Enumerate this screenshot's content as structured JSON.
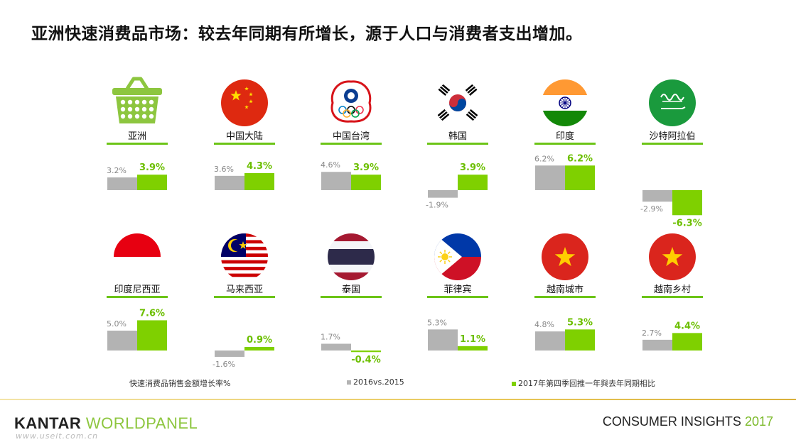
{
  "title": "亚洲快速消费品市场：较去年同期有所增长，源于人口与消费者支出增加。",
  "colors": {
    "gray": "#b3b3b3",
    "green": "#7fd000",
    "underline": "#6cc417"
  },
  "legend": {
    "title": "快速消费品销售金额增长率%",
    "series_2016": "2016vs.2015",
    "series_2017": "2017年第四季回推一年與去年同期相比"
  },
  "footer": {
    "brand_kantar": "KANTAR",
    "brand_worldpanel": "WORLDPANEL",
    "watermark": "www.useit.com.cn",
    "insights": "CONSUMER INSIGHTS",
    "year": "2017"
  },
  "chart_data": {
    "type": "bar",
    "categories": [
      "亚洲",
      "中国大陆",
      "中国台湾",
      "韩国",
      "印度",
      "沙特阿拉伯",
      "印度尼西亚",
      "马来西亚",
      "泰国",
      "菲律宾",
      "越南城市",
      "越南乡村"
    ],
    "icons": [
      "basket-icon",
      "china-flag-icon",
      "taiwan-olympic-flag-icon",
      "korea-flag-icon",
      "india-flag-icon",
      "saudi-flag-icon",
      "indonesia-flag-icon",
      "malaysia-flag-icon",
      "thailand-flag-icon",
      "philippines-flag-icon",
      "vietnam-flag-icon",
      "vietnam-flag-icon"
    ],
    "series": [
      {
        "name": "2016vs.2015",
        "values": [
          3.2,
          3.6,
          4.6,
          -1.9,
          6.2,
          -2.9,
          5.0,
          -1.6,
          1.7,
          5.3,
          4.8,
          2.7
        ],
        "labels": [
          "3.2%",
          "3.6%",
          "4.6%",
          "-1.9%",
          "6.2%",
          "-2.9%",
          "5.0%",
          "-1.6%",
          "1.7%",
          "5.3%",
          "4.8%",
          "2.7%"
        ]
      },
      {
        "name": "2017年第四季回推一年與去年同期相比",
        "values": [
          3.9,
          4.3,
          3.9,
          3.9,
          6.2,
          -6.3,
          7.6,
          0.9,
          -0.4,
          1.1,
          5.3,
          4.4
        ],
        "labels": [
          "3.9%",
          "4.3%",
          "3.9%",
          "3.9%",
          "6.2%",
          "-6.3%",
          "7.6%",
          "0.9%",
          "-0.4%",
          "1.1%",
          "5.3%",
          "4.4%"
        ]
      }
    ]
  }
}
